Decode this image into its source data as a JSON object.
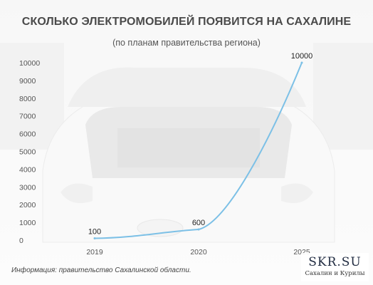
{
  "header": {
    "title": "СКОЛЬКО ЭЛЕКТРОМОБИЛЕЙ ПОЯВИТСЯ НА САХАЛИНЕ",
    "subtitle": "(по планам правительства региона)"
  },
  "footer": {
    "source": "Информация: правительство Сахалинской области.",
    "logo_main": "SKR.SU",
    "logo_sub": "Сахалин и Курилы"
  },
  "colors": {
    "line": "#7cc0e6",
    "axis_text": "#555555",
    "label_text": "#222222"
  },
  "chart_data": {
    "type": "line",
    "title": "СКОЛЬКО ЭЛЕКТРОМОБИЛЕЙ ПОЯВИТСЯ НА САХАЛИНЕ",
    "subtitle": "(по планам правительства региона)",
    "categories": [
      "2019",
      "2020",
      "2025"
    ],
    "values": [
      100,
      600,
      10000
    ],
    "data_labels": [
      "100",
      "600",
      "10000"
    ],
    "yticks": [
      "0",
      "1000",
      "2000",
      "3000",
      "4000",
      "5000",
      "6000",
      "7000",
      "8000",
      "9000",
      "10000"
    ],
    "ylim": [
      0,
      10000
    ],
    "xlabel": "",
    "ylabel": "",
    "grid": false,
    "legend": "none",
    "smooth": true
  }
}
